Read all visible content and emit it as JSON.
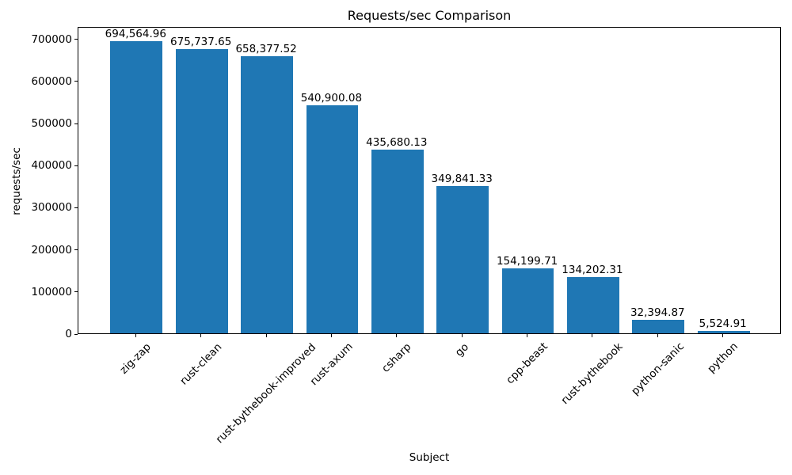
{
  "chart_data": {
    "type": "bar",
    "title": "Requests/sec Comparison",
    "xlabel": "Subject",
    "ylabel": "requests/sec",
    "categories": [
      "zig-zap",
      "rust-clean",
      "rust-bythebook-improved",
      "rust-axum",
      "csharp",
      "go",
      "cpp-beast",
      "rust-bythebook",
      "python-sanic",
      "python"
    ],
    "values": [
      694564.96,
      675737.65,
      658377.52,
      540900.08,
      435680.13,
      349841.33,
      154199.71,
      134202.31,
      32394.87,
      5524.91
    ],
    "value_labels": [
      "694,564.96",
      "675,737.65",
      "658,377.52",
      "540,900.08",
      "435,680.13",
      "349,841.33",
      "154,199.71",
      "134,202.31",
      "32,394.87",
      "5,524.91"
    ],
    "y_ticks": [
      0,
      100000,
      200000,
      300000,
      400000,
      500000,
      600000,
      700000
    ],
    "ylim": [
      0,
      729293
    ],
    "bar_color": "#1f77b4",
    "axis_color": "#000000",
    "background_color": "#ffffff",
    "grid": false,
    "legend": null,
    "bar_width_fraction": 0.8,
    "x_tick_rotation_deg": 45
  }
}
